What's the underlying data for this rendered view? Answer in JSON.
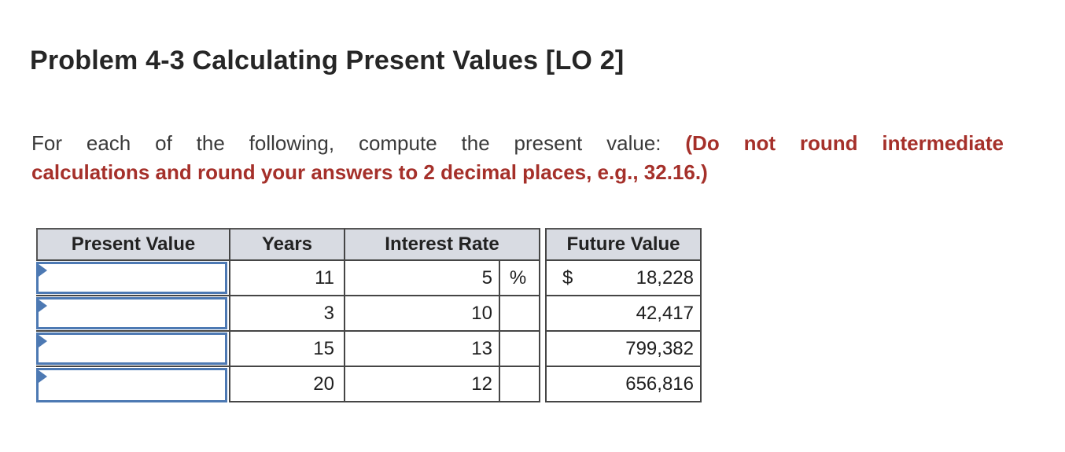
{
  "page": {
    "title": "Problem 4-3 Calculating Present Values [LO 2]"
  },
  "instructions": {
    "line1_normal": "For each of the following, compute the present value: ",
    "line1_emphasis": "(Do not round intermediate",
    "line2_emphasis": "calculations and round your answers to 2 decimal places, e.g., 32.16.)",
    "emphasis_color": "#a5302a"
  },
  "table": {
    "headers": [
      "Present Value",
      "Years",
      "Interest Rate",
      "Future Value"
    ],
    "rows": [
      {
        "present_value": "",
        "years": "11",
        "interest_rate": "5",
        "rate_unit": "%",
        "currency": "$",
        "future_value": "18,228"
      },
      {
        "present_value": "",
        "years": "3",
        "interest_rate": "10",
        "rate_unit": "",
        "currency": "",
        "future_value": "42,417"
      },
      {
        "present_value": "",
        "years": "15",
        "interest_rate": "13",
        "rate_unit": "",
        "currency": "",
        "future_value": "799,382"
      },
      {
        "present_value": "",
        "years": "20",
        "interest_rate": "12",
        "rate_unit": "",
        "currency": "",
        "future_value": "656,816"
      }
    ],
    "colors": {
      "header_bg": "#d8dbe2",
      "grid_line": "#454545",
      "input_border": "#4d79b3"
    }
  }
}
